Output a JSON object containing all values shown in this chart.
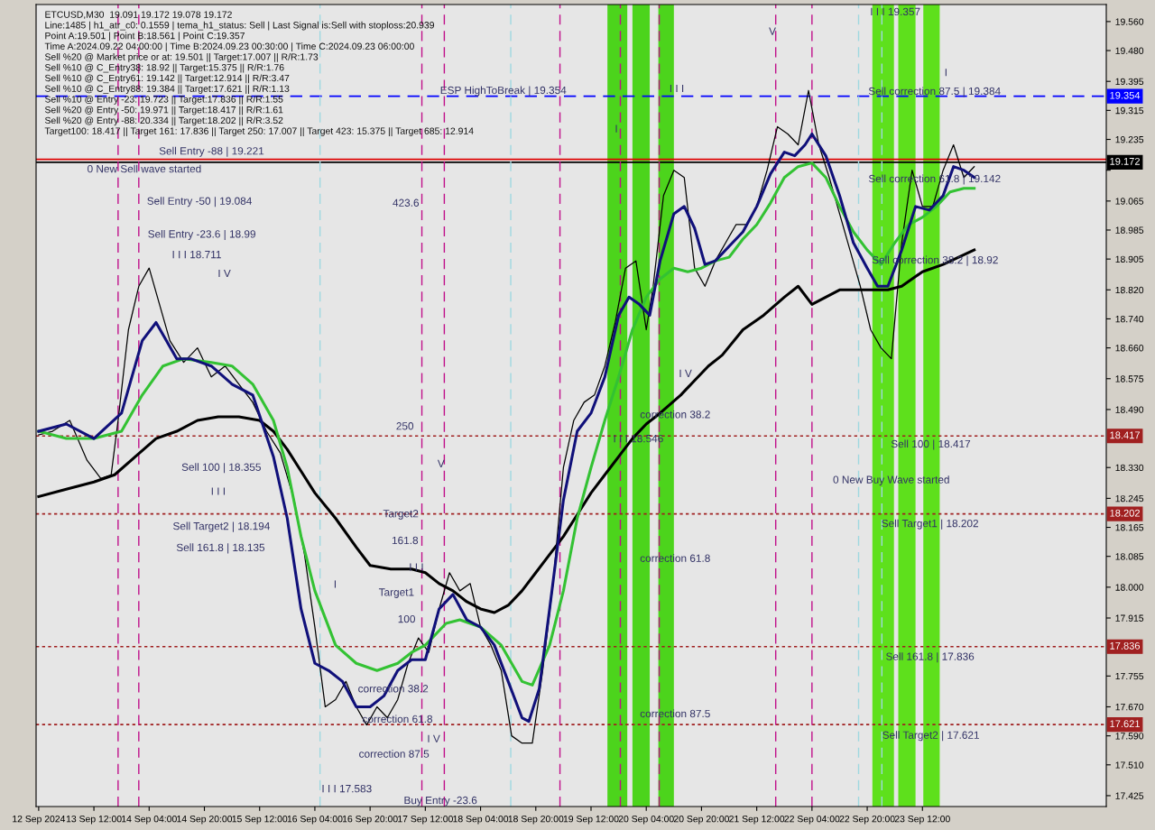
{
  "chart_data": {
    "type": "line",
    "xlim": [
      "2024-09-12T19:15",
      "2024-09-25T17:15"
    ],
    "ylim": [
      17.395,
      19.607
    ],
    "xticks": [
      {
        "value": "2024-09-12T20:00",
        "label": "12 Sep 2024"
      },
      {
        "value": "2024-09-13T12:00",
        "label": "13 Sep 12:00"
      },
      {
        "value": "2024-09-14T04:00",
        "label": "14 Sep 04:00"
      },
      {
        "value": "2024-09-14T20:00",
        "label": "14 Sep 20:00"
      },
      {
        "value": "2024-09-15T12:00",
        "label": "15 Sep 12:00"
      },
      {
        "value": "2024-09-16T04:00",
        "label": "16 Sep 04:00"
      },
      {
        "value": "2024-09-16T20:00",
        "label": "16 Sep 20:00"
      },
      {
        "value": "2024-09-17T12:00",
        "label": "17 Sep 12:00"
      },
      {
        "value": "2024-09-18T04:00",
        "label": "18 Sep 04:00"
      },
      {
        "value": "2024-09-18T20:00",
        "label": "18 Sep 20:00"
      },
      {
        "value": "2024-09-19T12:00",
        "label": "19 Sep 12:00"
      },
      {
        "value": "2024-09-20T04:00",
        "label": "20 Sep 04:00"
      },
      {
        "value": "2024-09-20T20:00",
        "label": "20 Sep 20:00"
      },
      {
        "value": "2024-09-21T12:00",
        "label": "21 Sep 12:00"
      },
      {
        "value": "2024-09-22T04:00",
        "label": "22 Sep 04:00"
      },
      {
        "value": "2024-09-22T20:00",
        "label": "22 Sep 20:00"
      },
      {
        "value": "2024-09-23T12:00",
        "label": "23 Sep 12:00"
      }
    ],
    "yticks": [
      {
        "value": 19.56,
        "label": "19.560"
      },
      {
        "value": 19.48,
        "label": "19.480"
      },
      {
        "value": 19.395,
        "label": "19.395"
      },
      {
        "value": 19.315,
        "label": "19.315"
      },
      {
        "value": 19.235,
        "label": "19.235"
      },
      {
        "value": 19.15,
        "label": null
      },
      {
        "value": 19.065,
        "label": "19.065"
      },
      {
        "value": 18.985,
        "label": "18.985"
      },
      {
        "value": 18.905,
        "label": "18.905"
      },
      {
        "value": 18.82,
        "label": "18.820"
      },
      {
        "value": 18.74,
        "label": "18.740"
      },
      {
        "value": 18.66,
        "label": "18.660"
      },
      {
        "value": 18.575,
        "label": "18.575"
      },
      {
        "value": 18.49,
        "label": "18.490"
      },
      {
        "value": 18.33,
        "label": "18.330"
      },
      {
        "value": 18.245,
        "label": "18.245"
      },
      {
        "value": 18.165,
        "label": "18.165"
      },
      {
        "value": 18.085,
        "label": "18.085"
      },
      {
        "value": 18.0,
        "label": "18.000"
      },
      {
        "value": 17.915,
        "label": "17.915"
      },
      {
        "value": 17.755,
        "label": "17.755"
      },
      {
        "value": 17.67,
        "label": "17.670"
      },
      {
        "value": 17.59,
        "label": "17.590"
      },
      {
        "value": 17.51,
        "label": "17.510"
      },
      {
        "value": 17.425,
        "label": "17.425"
      }
    ],
    "grid": false,
    "marker": "none",
    "line_style": "solid",
    "series": [
      {
        "color": "#000000",
        "x": [
          "2024-09-12T20:00",
          "2024-09-13T00:00",
          "2024-09-13T05:00",
          "2024-09-13T10:00",
          "2024-09-13T14:00",
          "2024-09-13T17:00",
          "2024-09-13T19:00",
          "2024-09-13T22:00",
          "2024-09-14T01:00",
          "2024-09-14T04:00",
          "2024-09-14T07:00",
          "2024-09-14T10:00",
          "2024-09-14T14:00",
          "2024-09-14T18:00",
          "2024-09-14T22:00",
          "2024-09-15T02:00",
          "2024-09-15T06:00",
          "2024-09-15T10:00",
          "2024-09-15T14:00",
          "2024-09-15T18:00",
          "2024-09-15T22:00",
          "2024-09-16T01:00",
          "2024-09-16T04:00",
          "2024-09-16T07:00",
          "2024-09-16T10:00",
          "2024-09-16T13:00",
          "2024-09-16T16:00",
          "2024-09-16T19:00",
          "2024-09-16T22:00",
          "2024-09-17T01:00",
          "2024-09-17T04:00",
          "2024-09-17T07:00",
          "2024-09-17T10:00",
          "2024-09-17T13:00",
          "2024-09-17T16:00",
          "2024-09-17T19:00",
          "2024-09-17T22:00",
          "2024-09-18T01:00",
          "2024-09-18T04:00",
          "2024-09-18T07:00",
          "2024-09-18T10:00",
          "2024-09-18T13:00",
          "2024-09-18T16:00",
          "2024-09-18T19:00",
          "2024-09-18T22:00",
          "2024-09-19T01:00",
          "2024-09-19T04:00",
          "2024-09-19T07:00",
          "2024-09-19T10:00",
          "2024-09-19T13:00",
          "2024-09-19T16:00",
          "2024-09-19T19:00",
          "2024-09-19T22:00",
          "2024-09-20T01:00",
          "2024-09-20T04:00",
          "2024-09-20T06:00",
          "2024-09-20T09:00",
          "2024-09-20T12:00",
          "2024-09-20T15:00",
          "2024-09-20T18:00",
          "2024-09-20T21:00",
          "2024-09-21T00:00",
          "2024-09-21T03:00",
          "2024-09-21T06:00",
          "2024-09-21T09:00",
          "2024-09-21T12:00",
          "2024-09-21T15:00",
          "2024-09-21T18:00",
          "2024-09-21T21:00",
          "2024-09-22T00:00",
          "2024-09-22T03:00",
          "2024-09-22T06:00",
          "2024-09-22T09:00",
          "2024-09-22T12:00",
          "2024-09-22T15:00",
          "2024-09-22T18:00",
          "2024-09-22T21:00",
          "2024-09-23T00:00",
          "2024-09-23T03:00",
          "2024-09-23T06:00",
          "2024-09-23T09:00",
          "2024-09-23T12:00",
          "2024-09-23T15:00",
          "2024-09-23T18:00",
          "2024-09-23T21:00",
          "2024-09-24T00:00",
          "2024-09-24T03:00"
        ],
        "values": [
          18.42,
          18.43,
          18.46,
          18.35,
          18.3,
          18.31,
          18.46,
          18.71,
          18.83,
          18.88,
          18.78,
          18.68,
          18.62,
          18.66,
          18.58,
          18.61,
          18.56,
          18.51,
          18.43,
          18.37,
          18.24,
          18.09,
          17.89,
          17.67,
          17.69,
          17.74,
          17.67,
          17.62,
          17.67,
          17.64,
          17.69,
          17.79,
          17.86,
          17.82,
          17.94,
          18.04,
          17.99,
          18.01,
          17.89,
          17.84,
          17.77,
          17.59,
          17.57,
          17.57,
          17.77,
          18.01,
          18.33,
          18.46,
          18.51,
          18.53,
          18.61,
          18.73,
          18.88,
          18.9,
          18.71,
          18.83,
          19.08,
          19.15,
          19.13,
          18.88,
          18.83,
          18.9,
          18.95,
          19.0,
          19.0,
          19.05,
          19.15,
          19.27,
          19.25,
          19.22,
          19.37,
          19.22,
          19.13,
          19.03,
          18.93,
          18.83,
          18.71,
          18.66,
          18.63,
          18.95,
          19.15,
          19.05,
          19.05,
          19.15,
          19.22,
          19.13,
          19.16
        ]
      },
      {
        "color": "#000000",
        "x": [
          "2024-09-12T20:00",
          "2024-09-13T04:00",
          "2024-09-13T12:00",
          "2024-09-13T18:00",
          "2024-09-14T00:00",
          "2024-09-14T06:00",
          "2024-09-14T12:00",
          "2024-09-14T18:00",
          "2024-09-15T00:00",
          "2024-09-15T06:00",
          "2024-09-15T12:00",
          "2024-09-15T16:00",
          "2024-09-15T20:00",
          "2024-09-16T00:00",
          "2024-09-16T04:00",
          "2024-09-16T10:00",
          "2024-09-16T16:00",
          "2024-09-16T20:00",
          "2024-09-17T02:00",
          "2024-09-17T08:00",
          "2024-09-17T12:00",
          "2024-09-17T16:00",
          "2024-09-17T20:00",
          "2024-09-18T00:00",
          "2024-09-18T04:00",
          "2024-09-18T08:00",
          "2024-09-18T12:00",
          "2024-09-18T16:00",
          "2024-09-18T20:00",
          "2024-09-19T00:00",
          "2024-09-19T04:00",
          "2024-09-19T08:00",
          "2024-09-19T12:00",
          "2024-09-19T16:00",
          "2024-09-19T20:00",
          "2024-09-20T00:00",
          "2024-09-20T04:00",
          "2024-09-20T08:00",
          "2024-09-20T14:00",
          "2024-09-20T18:00",
          "2024-09-20T22:00",
          "2024-09-21T02:00",
          "2024-09-21T08:00",
          "2024-09-21T14:00",
          "2024-09-21T20:00",
          "2024-09-22T00:00",
          "2024-09-22T04:00",
          "2024-09-22T08:00",
          "2024-09-22T12:00",
          "2024-09-22T20:00",
          "2024-09-23T02:00",
          "2024-09-23T06:00",
          "2024-09-23T12:00",
          "2024-09-23T18:00",
          "2024-09-24T03:00"
        ],
        "values": [
          18.25,
          18.27,
          18.29,
          18.31,
          18.36,
          18.41,
          18.43,
          18.46,
          18.47,
          18.47,
          18.46,
          18.43,
          18.38,
          18.32,
          18.26,
          18.19,
          18.11,
          18.06,
          18.05,
          18.05,
          18.04,
          18.01,
          17.99,
          17.96,
          17.94,
          17.93,
          17.95,
          17.99,
          18.04,
          18.09,
          18.14,
          18.2,
          18.26,
          18.31,
          18.36,
          18.41,
          18.45,
          18.48,
          18.53,
          18.57,
          18.61,
          18.64,
          18.71,
          18.75,
          18.8,
          18.83,
          18.78,
          18.8,
          18.82,
          18.82,
          18.82,
          18.83,
          18.87,
          18.89,
          18.93
        ]
      },
      {
        "color": "#33c233",
        "x": [
          "2024-09-12T20:00",
          "2024-09-13T04:00",
          "2024-09-13T12:00",
          "2024-09-13T20:00",
          "2024-09-14T02:00",
          "2024-09-14T08:00",
          "2024-09-14T14:00",
          "2024-09-14T22:00",
          "2024-09-15T04:00",
          "2024-09-15T10:00",
          "2024-09-15T16:00",
          "2024-09-15T20:00",
          "2024-09-16T00:00",
          "2024-09-16T04:00",
          "2024-09-16T10:00",
          "2024-09-16T16:00",
          "2024-09-16T22:00",
          "2024-09-17T04:00",
          "2024-09-17T08:00",
          "2024-09-17T12:00",
          "2024-09-17T18:00",
          "2024-09-17T22:00",
          "2024-09-18T04:00",
          "2024-09-18T10:00",
          "2024-09-18T16:00",
          "2024-09-18T19:00",
          "2024-09-19T00:00",
          "2024-09-19T04:00",
          "2024-09-19T08:00",
          "2024-09-19T12:00",
          "2024-09-19T16:00",
          "2024-09-19T20:00",
          "2024-09-20T00:00",
          "2024-09-20T04:00",
          "2024-09-20T08:00",
          "2024-09-20T12:00",
          "2024-09-20T16:00",
          "2024-09-20T20:00",
          "2024-09-21T00:00",
          "2024-09-21T04:00",
          "2024-09-21T08:00",
          "2024-09-21T12:00",
          "2024-09-21T16:00",
          "2024-09-21T20:00",
          "2024-09-22T00:00",
          "2024-09-22T04:00",
          "2024-09-22T08:00",
          "2024-09-22T12:00",
          "2024-09-22T16:00",
          "2024-09-22T20:00",
          "2024-09-23T00:00",
          "2024-09-23T04:00",
          "2024-09-23T08:00",
          "2024-09-23T12:00",
          "2024-09-23T16:00",
          "2024-09-23T20:00",
          "2024-09-24T00:00",
          "2024-09-24T03:00"
        ],
        "values": [
          18.43,
          18.41,
          18.41,
          18.43,
          18.53,
          18.61,
          18.63,
          18.62,
          18.61,
          18.56,
          18.46,
          18.33,
          18.14,
          17.99,
          17.84,
          17.79,
          17.77,
          17.79,
          17.82,
          17.84,
          17.9,
          17.91,
          17.89,
          17.84,
          17.74,
          17.73,
          17.84,
          17.99,
          18.19,
          18.33,
          18.46,
          18.58,
          18.71,
          18.8,
          18.85,
          18.88,
          18.87,
          18.88,
          18.9,
          18.91,
          18.96,
          19.0,
          19.06,
          19.13,
          19.16,
          19.17,
          19.13,
          19.05,
          18.98,
          18.93,
          18.89,
          18.95,
          19.0,
          19.02,
          19.05,
          19.09,
          19.1,
          19.1
        ]
      },
      {
        "color": "#10107a",
        "x": [
          "2024-09-12T20:00",
          "2024-09-13T04:00",
          "2024-09-13T12:00",
          "2024-09-13T20:00",
          "2024-09-14T02:00",
          "2024-09-14T06:00",
          "2024-09-14T12:00",
          "2024-09-14T16:00",
          "2024-09-14T22:00",
          "2024-09-15T04:00",
          "2024-09-15T10:00",
          "2024-09-15T16:00",
          "2024-09-15T20:00",
          "2024-09-16T00:00",
          "2024-09-16T04:00",
          "2024-09-16T08:00",
          "2024-09-16T12:00",
          "2024-09-16T16:00",
          "2024-09-16T20:00",
          "2024-09-17T00:00",
          "2024-09-17T04:00",
          "2024-09-17T08:00",
          "2024-09-17T12:00",
          "2024-09-17T16:00",
          "2024-09-17T20:00",
          "2024-09-18T00:00",
          "2024-09-18T04:00",
          "2024-09-18T08:00",
          "2024-09-18T12:00",
          "2024-09-18T16:00",
          "2024-09-18T18:00",
          "2024-09-18T21:00",
          "2024-09-19T00:00",
          "2024-09-19T04:00",
          "2024-09-19T08:00",
          "2024-09-19T12:00",
          "2024-09-19T16:00",
          "2024-09-19T20:00",
          "2024-09-19T23:00",
          "2024-09-20T02:00",
          "2024-09-20T05:00",
          "2024-09-20T08:00",
          "2024-09-20T12:00",
          "2024-09-20T15:00",
          "2024-09-20T18:00",
          "2024-09-20T21:00",
          "2024-09-21T00:00",
          "2024-09-21T04:00",
          "2024-09-21T08:00",
          "2024-09-21T12:00",
          "2024-09-21T16:00",
          "2024-09-21T20:00",
          "2024-09-21T23:00",
          "2024-09-22T02:00",
          "2024-09-22T04:00",
          "2024-09-22T08:00",
          "2024-09-22T12:00",
          "2024-09-22T16:00",
          "2024-09-22T20:00",
          "2024-09-22T23:00",
          "2024-09-23T02:00",
          "2024-09-23T06:00",
          "2024-09-23T10:00",
          "2024-09-23T14:00",
          "2024-09-23T18:00",
          "2024-09-23T21:00",
          "2024-09-24T00:00",
          "2024-09-24T03:00"
        ],
        "values": [
          18.43,
          18.45,
          18.41,
          18.48,
          18.68,
          18.73,
          18.63,
          18.63,
          18.61,
          18.56,
          18.53,
          18.36,
          18.19,
          17.94,
          17.79,
          17.77,
          17.74,
          17.67,
          17.67,
          17.7,
          17.77,
          17.8,
          17.8,
          17.94,
          17.98,
          17.91,
          17.89,
          17.84,
          17.74,
          17.64,
          17.63,
          17.72,
          17.94,
          18.24,
          18.43,
          18.48,
          18.58,
          18.75,
          18.8,
          18.78,
          18.75,
          18.9,
          19.03,
          19.05,
          18.99,
          18.89,
          18.9,
          18.94,
          18.98,
          19.05,
          19.14,
          19.2,
          19.19,
          19.22,
          19.25,
          19.19,
          19.08,
          18.95,
          18.88,
          18.83,
          18.83,
          18.93,
          19.05,
          19.04,
          19.08,
          19.16,
          19.15,
          19.13
        ]
      }
    ],
    "bands": [
      {
        "axis": "x",
        "from": "2024-09-19T16:45",
        "to": "2024-09-19T22:30",
        "color": "#4cd41c"
      },
      {
        "axis": "x",
        "from": "2024-09-20T00:00",
        "to": "2024-09-20T05:00",
        "color": "#4cd41c"
      },
      {
        "axis": "x",
        "from": "2024-09-20T07:30",
        "to": "2024-09-20T12:00",
        "color": "#4cd41c"
      },
      {
        "axis": "x",
        "from": "2024-09-22T21:30",
        "to": "2024-09-23T03:45",
        "color": "#5ee01c"
      },
      {
        "axis": "x",
        "from": "2024-09-23T05:00",
        "to": "2024-09-23T10:00",
        "color": "#5ee01c"
      },
      {
        "axis": "x",
        "from": "2024-09-23T12:15",
        "to": "2024-09-23T17:00",
        "color": "#5ee01c"
      }
    ],
    "ref_lines": [
      {
        "axis": "y",
        "value": 19.354,
        "label": "19.354",
        "color": "#0000ff",
        "line_style": "dashed"
      },
      {
        "axis": "y",
        "value": 19.18,
        "color": "#dd0000",
        "line_style": "solid"
      },
      {
        "axis": "y",
        "value": 19.172,
        "label": "19.172",
        "color": "#000000",
        "line_style": "solid"
      },
      {
        "axis": "y",
        "value": 18.417,
        "label": "18.417",
        "color": "#a02020",
        "line_style": "dotted"
      },
      {
        "axis": "y",
        "value": 18.202,
        "label": "18.202",
        "color": "#a02020",
        "line_style": "dotted"
      },
      {
        "axis": "y",
        "value": 17.836,
        "label": "17.836",
        "color": "#a02020",
        "line_style": "dotted"
      },
      {
        "axis": "y",
        "value": 17.621,
        "label": "17.621",
        "color": "#a02020",
        "line_style": "dotted"
      },
      {
        "axis": "x",
        "value": "2024-09-13T19:00",
        "color": "#c0108a",
        "line_style": "dashed"
      },
      {
        "axis": "x",
        "value": "2024-09-14T01:00",
        "color": "#c0108a",
        "line_style": "dashed"
      },
      {
        "axis": "x",
        "value": "2024-09-16T05:30",
        "color": "#9fd8e0",
        "line_style": "dashed"
      },
      {
        "axis": "x",
        "value": "2024-09-17T11:00",
        "color": "#c0108a",
        "line_style": "dashed"
      },
      {
        "axis": "x",
        "value": "2024-09-17T17:30",
        "color": "#c0108a",
        "line_style": "dashed"
      },
      {
        "axis": "x",
        "value": "2024-09-18T12:45",
        "color": "#9fd8e0",
        "line_style": "dashed"
      },
      {
        "axis": "x",
        "value": "2024-09-19T03:00",
        "color": "#c0108a",
        "line_style": "dashed"
      },
      {
        "axis": "x",
        "value": "2024-09-19T20:30",
        "color": "#c0108a",
        "line_style": "dashed"
      },
      {
        "axis": "x",
        "value": "2024-09-20T07:45",
        "color": "#c0108a",
        "line_style": "dashed"
      },
      {
        "axis": "x",
        "value": "2024-09-21T17:30",
        "color": "#c0108a",
        "line_style": "dashed"
      },
      {
        "axis": "x",
        "value": "2024-09-22T04:00",
        "color": "#c0108a",
        "line_style": "dashed"
      },
      {
        "axis": "x",
        "value": "2024-09-22T17:30",
        "color": "#9fd8e0",
        "line_style": "dashed"
      },
      {
        "axis": "x",
        "value": "2024-09-23T00:15",
        "color": "#9fd8e0",
        "line_style": "dashed"
      }
    ],
    "annotations": [
      "ETCUSD,M30  19.091 19.172 19.078 19.172",
      "Line:1485 | h1_atr_c0: 0.1559 | tema_h1_status: Sell | Last Signal is:Sell with stoploss:20.939",
      "Point A:19.501 | Point B:18.561 | Point C:19.357",
      "Time A:2024.09.22 04:00:00 | Time B:2024.09.23 00:30:00 | Time C:2024.09.23 06:00:00",
      "Sell %20 @ Market price or at: 19.501 || Target:17.007 || R/R:1.73",
      "Sell %10 @ C_Entry38: 18.92 || Target:15.375 || R/R:1.76",
      "Sell %10 @ C_Entry61: 19.142 || Target:12.914 || R/R:3.47",
      "Sell %10 @ C_Entry88: 19.384 || Target:17.621 || R/R:1.13",
      "Sell %10 @ Entry -23: 19.723 || Target:17.836 || R/R:1.55",
      "Sell %20 @ Entry -50: 19.971 || Target:18.417 || R/R:1.61",
      "Sell %20 @ Entry -88: 20.334 || Target:18.202 || R/R:3.52",
      "Target100: 18.417 || Target 161: 17.836 || Target 250: 17.007 || Target 423: 15.375 || Target 685: 12.914",
      "ESP HighToBreak | 19.354",
      "Sell Entry -88 | 19.221",
      "0 New Sell wave started",
      "Sell Entry -50 | 19.084",
      "Sell Entry -23.6 | 18.99",
      "I I I 18.711",
      "I V",
      "423.6",
      "250",
      "Sell 100 | 18.355",
      "I I I",
      "Sell Target2 | 18.194",
      "Sell 161.8 | 18.135",
      "Target2",
      "161.8",
      "I I I",
      "I",
      "Target1",
      "100",
      "correction 38.2",
      "correction 61.8",
      "correction 87.5",
      "I V",
      "I I I 17.583",
      "Buy Entry -23.6",
      "V",
      "correction 38.2",
      "I I I 18.546",
      "I V",
      "I",
      "I I I",
      "V",
      "correction 61.8",
      "correction 87.5",
      "0 New Buy Wave started",
      "Sell 100 | 18.417",
      "Sell Target1 | 18.202",
      "Sell 161.8 | 17.836",
      "Sell Target2 | 17.621",
      "I I I 19.357",
      "Sell correction 87.5 | 19.384",
      "Sell correction 61.8 | 19.142",
      "Sell correction 38.2 | 18.92",
      "I"
    ]
  }
}
